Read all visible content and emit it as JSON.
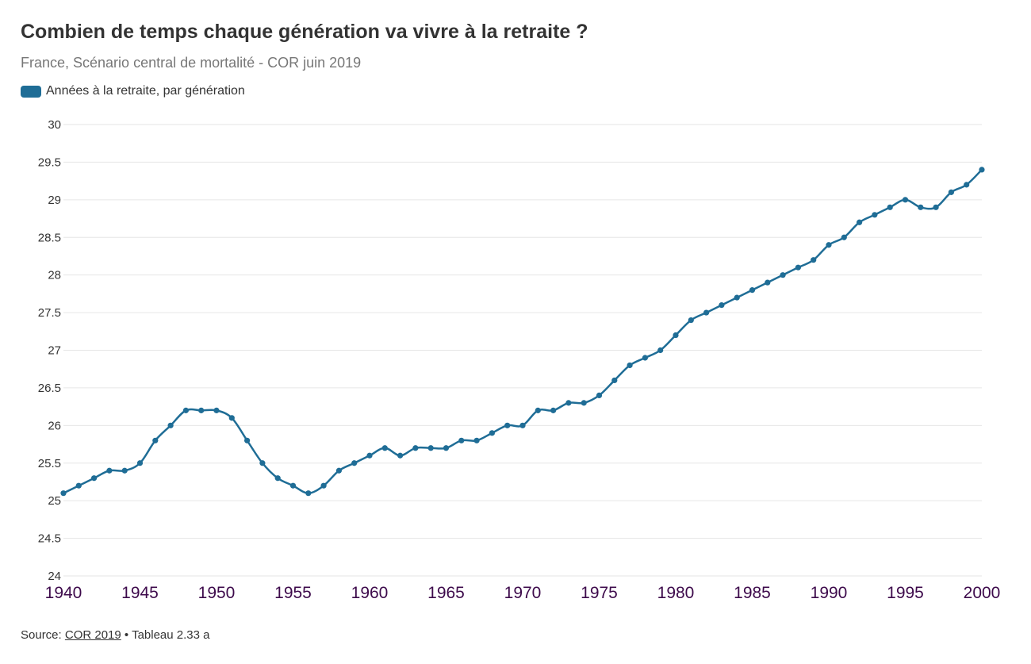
{
  "header": {
    "title": "Combien de temps chaque génération va vivre à la retraite ?",
    "subtitle": "France, Scénario central de mortalité - COR juin 2019"
  },
  "footer": {
    "source_prefix": "Source: ",
    "source_link": "COR 2019",
    "source_suffix": " • Tableau 2.33 a"
  },
  "colors": {
    "series": "#1f6d96",
    "grid": "#e6e6e6",
    "y_tick": "#333333",
    "x_tick": "#3d0a4b"
  },
  "chart_data": {
    "type": "line",
    "title": "Combien de temps chaque génération va vivre à la retraite ?",
    "subtitle": "France, Scénario central de mortalité - COR juin 2019",
    "xlabel": "",
    "ylabel": "",
    "xlim": [
      1940,
      2000
    ],
    "ylim": [
      24,
      30
    ],
    "grid": true,
    "legend_position": "top-left",
    "x_ticks": [
      "1940",
      "1945",
      "1950",
      "1955",
      "1960",
      "1965",
      "1970",
      "1975",
      "1980",
      "1985",
      "1990",
      "1995",
      "2000"
    ],
    "y_ticks": [
      "24",
      "24.5",
      "25",
      "25.5",
      "26",
      "26.5",
      "27",
      "27.5",
      "28",
      "28.5",
      "29",
      "29.5",
      "30"
    ],
    "x": [
      1940,
      1941,
      1942,
      1943,
      1944,
      1945,
      1946,
      1947,
      1948,
      1949,
      1950,
      1951,
      1952,
      1953,
      1954,
      1955,
      1956,
      1957,
      1958,
      1959,
      1960,
      1961,
      1962,
      1963,
      1964,
      1965,
      1966,
      1967,
      1968,
      1969,
      1970,
      1971,
      1972,
      1973,
      1974,
      1975,
      1976,
      1977,
      1978,
      1979,
      1980,
      1981,
      1982,
      1983,
      1984,
      1985,
      1986,
      1987,
      1988,
      1989,
      1990,
      1991,
      1992,
      1993,
      1994,
      1995,
      1996,
      1997,
      1998,
      1999,
      2000
    ],
    "series": [
      {
        "name": "Années à la retraite, par génération",
        "values": [
          25.1,
          25.2,
          25.3,
          25.4,
          25.4,
          25.5,
          25.8,
          26.0,
          26.2,
          26.2,
          26.2,
          26.1,
          25.8,
          25.5,
          25.3,
          25.2,
          25.1,
          25.2,
          25.4,
          25.5,
          25.6,
          25.7,
          25.6,
          25.7,
          25.7,
          25.7,
          25.8,
          25.8,
          25.9,
          26.0,
          26.0,
          26.2,
          26.2,
          26.3,
          26.3,
          26.4,
          26.6,
          26.8,
          26.9,
          27.0,
          27.2,
          27.4,
          27.5,
          27.6,
          27.7,
          27.8,
          27.9,
          28.0,
          28.1,
          28.2,
          28.4,
          28.5,
          28.7,
          28.8,
          28.9,
          29.0,
          28.9,
          28.9,
          29.1,
          29.2,
          29.4
        ]
      }
    ]
  }
}
